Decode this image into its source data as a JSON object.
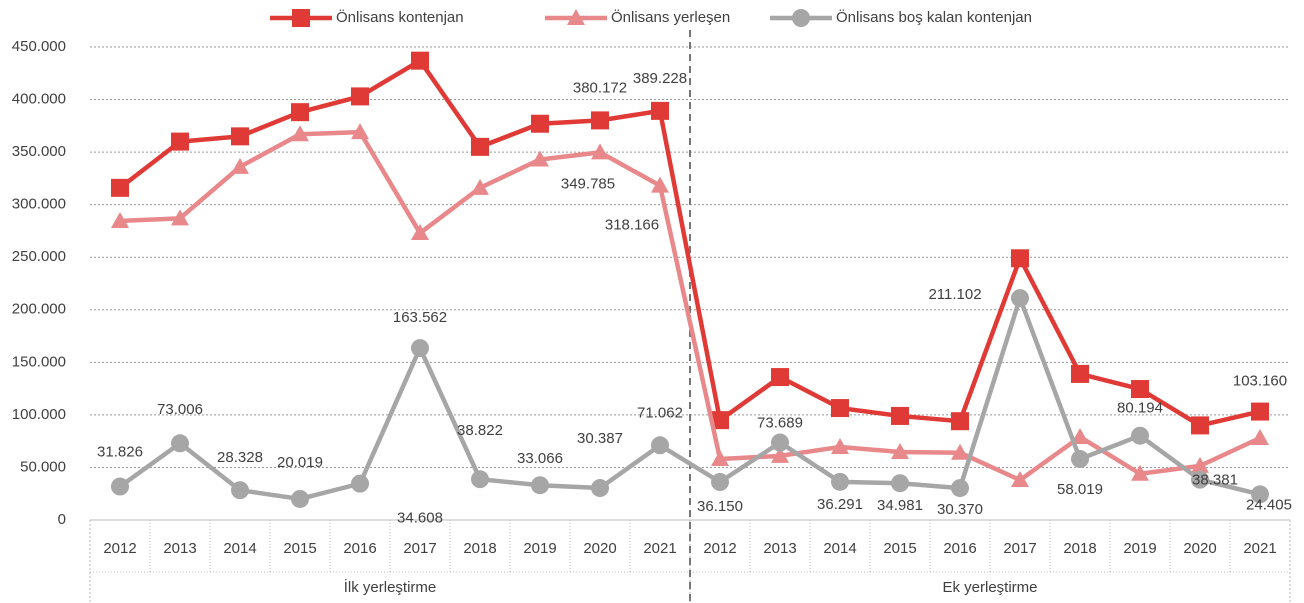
{
  "chart_data": {
    "type": "line",
    "categories": [
      "2012",
      "2013",
      "2014",
      "2015",
      "2016",
      "2017",
      "2018",
      "2019",
      "2020",
      "2021",
      "2012",
      "2013",
      "2014",
      "2015",
      "2016",
      "2017",
      "2018",
      "2019",
      "2020",
      "2021"
    ],
    "group_labels": [
      "İlk yerleştirme",
      "Ek yerleştirme"
    ],
    "ylim": [
      0,
      450000
    ],
    "yticks": [
      0,
      {
        "value": 50000,
        "label": "50.000"
      },
      {
        "value": 100000,
        "label": "100.000"
      },
      {
        "value": 150000,
        "label": "150.000"
      },
      {
        "value": 200000,
        "label": "200.000"
      },
      {
        "value": 250000,
        "label": "250.000"
      },
      {
        "value": 300000,
        "label": "300.000"
      },
      {
        "value": 350000,
        "label": "350.000"
      },
      {
        "value": 400000,
        "label": "400.000"
      },
      {
        "value": 450000,
        "label": "450.000"
      }
    ],
    "grid": true,
    "legend": "top",
    "series": [
      {
        "name": "Önlisans kontenjan",
        "color": "#e03a36",
        "marker": "square",
        "values": [
          316000,
          360000,
          365000,
          388000,
          403000,
          437000,
          355000,
          377000,
          380172,
          389228,
          95000,
          136000,
          106500,
          99000,
          94000,
          249000,
          139000,
          124600,
          90000,
          103160
        ],
        "value_labels": [
          null,
          null,
          null,
          null,
          null,
          null,
          null,
          null,
          "380.172",
          "389.228",
          null,
          null,
          null,
          null,
          null,
          null,
          null,
          null,
          null,
          "103.160"
        ]
      },
      {
        "name": "Önlisans yerleşen",
        "color": "#e8888a",
        "marker": "triangle",
        "values": [
          284500,
          287000,
          336000,
          367000,
          369000,
          273000,
          316000,
          343000,
          349785,
          318166,
          58000,
          61000,
          69500,
          64700,
          64000,
          38000,
          79000,
          44000,
          51500,
          78000
        ],
        "value_labels": [
          null,
          null,
          null,
          null,
          null,
          null,
          null,
          null,
          "349.785",
          "318.166",
          null,
          null,
          null,
          null,
          null,
          null,
          null,
          null,
          null,
          null
        ]
      },
      {
        "name": "Önlisans boş kalan kontenjan",
        "color": "#a6a6a6",
        "marker": "circle",
        "values": [
          31826,
          73006,
          28328,
          20019,
          34608,
          163562,
          38822,
          33066,
          30387,
          71062,
          36150,
          73689,
          36291,
          34981,
          30370,
          211102,
          58019,
          80194,
          38381,
          24405
        ],
        "value_labels": [
          "31.826",
          "73.006",
          "28.328",
          "20.019",
          "34.608",
          "163.562",
          "38.822",
          "33.066",
          "30.387",
          "71.062",
          "36.150",
          "73.689",
          "36.291",
          "34.981",
          "30.370",
          "211.102",
          "58.019",
          "80.194",
          "38.381",
          "24.405"
        ]
      }
    ]
  }
}
